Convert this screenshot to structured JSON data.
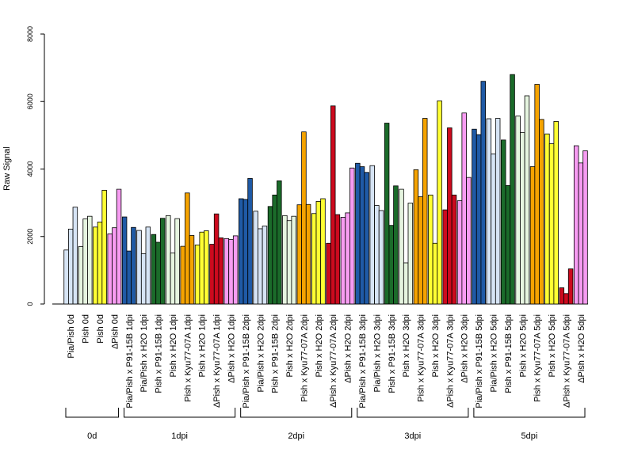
{
  "chart_data": {
    "type": "bar",
    "ylabel": "Raw Signal",
    "ylim": [
      0,
      8000
    ],
    "yticks": [
      0,
      2000,
      4000,
      6000,
      8000
    ],
    "categories": [
      "Pia/Pish 0d",
      "Pish 0d",
      "Pish 0d",
      "ΔPish 0d",
      "Pia/Pish x P91-15B 1dpi",
      "Pia/Pish x H2O 1dpi",
      "Pish x P91-15B 1dpi",
      "Pish x H2O 1dpi",
      "Pish x Kyu77-07A 1dpi",
      "Pish x H2O 1dpi",
      "ΔPish x Kyu77-07A 1dpi",
      "ΔPish x H2O 1dpi",
      "Pia/Pish x P91-15B 2dpi",
      "Pia/Pish x H2O 2dpi",
      "Pish x P91-15B 2dpi",
      "Pish x H2O 2dpi",
      "Pish x Kyu77-07A 2dpi",
      "Pish x H2O 2dpi",
      "ΔPish x Kyu77-07A 2dpi",
      "ΔPish x H2O 2dpi",
      "Pia/Pish x P91-15B 3dpi",
      "Pia/Pish x H2O 3dpi",
      "Pish x P91-15B 3dpi",
      "Pish x H2O 3dpi",
      "Pish x Kyu77-07A 3dpi",
      "Pish x H2O 3dpi",
      "ΔPish x Kyu77-07A 3dpi",
      "ΔPish x H2O 3dpi",
      "Pia/Pish x P91-15B 5dpi",
      "Pia/Pish x H2O 5dpi",
      "Pish x P91-15B 5dpi",
      "Pish x H2O 5dpi",
      "Pish x Kyu77-07A 5dpi",
      "Pish x H2O 5dpi",
      "ΔPish x Kyu77-07A 5dpi",
      "ΔPish x H2O 5dpi"
    ],
    "bar_colors": [
      "#D6E4F5",
      "#E6F5E0",
      "#FFFF33",
      "#F79CF2",
      "#1F5AA6",
      "#D6E4F5",
      "#1B6B2A",
      "#E6F5E0",
      "#F5A300",
      "#FFFF33",
      "#CC0A1E",
      "#F79CF2",
      "#1F5AA6",
      "#D6E4F5",
      "#1B6B2A",
      "#E6F5E0",
      "#F5A300",
      "#FFFF33",
      "#CC0A1E",
      "#F79CF2",
      "#1F5AA6",
      "#D6E4F5",
      "#1B6B2A",
      "#E6F5E0",
      "#F5A300",
      "#FFFF33",
      "#CC0A1E",
      "#F79CF2",
      "#1F5AA6",
      "#D6E4F5",
      "#1B6B2A",
      "#E6F5E0",
      "#F5A300",
      "#FFFF33",
      "#CC0A1E",
      "#F79CF2"
    ],
    "values": [
      [
        1600,
        2220,
        2870
      ],
      [
        1700,
        2520,
        2600
      ],
      [
        2280,
        2430,
        3370
      ],
      [
        2080,
        2260,
        3400
      ],
      [
        2580,
        1570,
        2270
      ],
      [
        2180,
        1490,
        2280
      ],
      [
        2060,
        1830,
        2540
      ],
      [
        2620,
        1510,
        2530
      ],
      [
        1710,
        3290,
        2030
      ],
      [
        1750,
        2130,
        2170
      ],
      [
        1770,
        2670,
        1960
      ],
      [
        1940,
        1910,
        2020
      ],
      [
        3120,
        3100,
        3720
      ],
      [
        2750,
        2230,
        2310
      ],
      [
        2890,
        3230,
        3650
      ],
      [
        2620,
        2470,
        2600
      ],
      [
        2940,
        5100,
        2950
      ],
      [
        2680,
        3040,
        3120
      ],
      [
        1800,
        5870,
        2650
      ],
      [
        2570,
        2700,
        4030
      ],
      [
        4170,
        4070,
        3900
      ],
      [
        4100,
        2920,
        2770
      ],
      [
        5360,
        2330,
        3500
      ],
      [
        3400,
        1220,
        2990
      ],
      [
        3980,
        3180,
        5500
      ],
      [
        3230,
        1800,
        6020
      ],
      [
        2790,
        5220,
        3230
      ],
      [
        3060,
        5660,
        3750
      ],
      [
        5180,
        5020,
        6600
      ],
      [
        5490,
        4450,
        5500
      ],
      [
        4860,
        3510,
        6800
      ],
      [
        5570,
        5080,
        6170
      ],
      [
        4070,
        6510,
        5470
      ],
      [
        5040,
        4750,
        5410
      ],
      [
        480,
        310,
        1040
      ],
      [
        4690,
        4180,
        4540
      ]
    ],
    "groups": [
      {
        "label": "0d",
        "start": 0,
        "end": 3
      },
      {
        "label": "1dpi",
        "start": 4,
        "end": 11
      },
      {
        "label": "2dpi",
        "start": 12,
        "end": 19
      },
      {
        "label": "3dpi",
        "start": 20,
        "end": 27
      },
      {
        "label": "5dpi",
        "start": 28,
        "end": 35
      }
    ],
    "grid": false,
    "legend": "none"
  }
}
